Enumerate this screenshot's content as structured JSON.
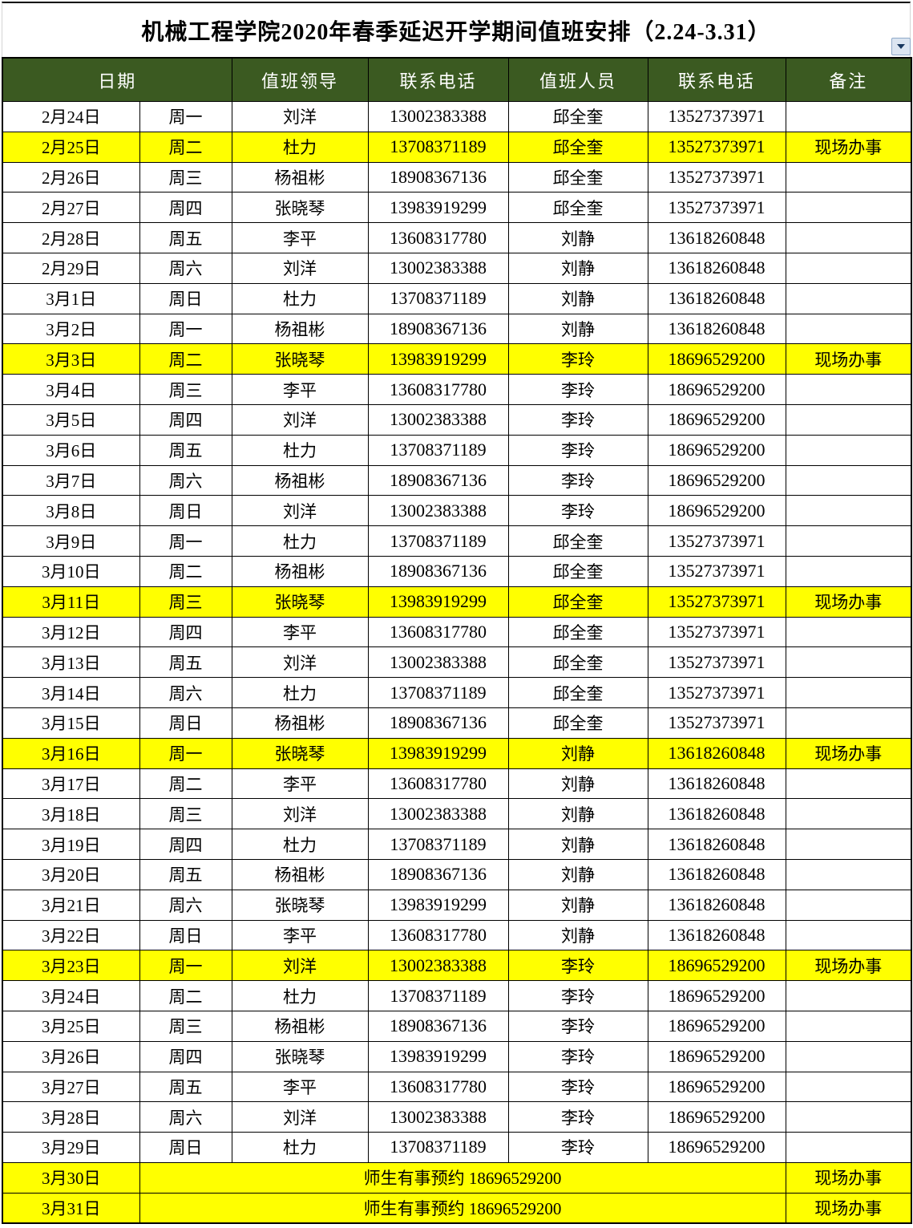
{
  "title": "机械工程学院2020年春季延迟开学期间值班安排（2.24-3.31）",
  "header": {
    "columns": [
      "日期",
      "值班领导",
      "联系电话",
      "值班人员",
      "联系电话",
      "备注"
    ]
  },
  "dropdown": {
    "icon": "down-triangle"
  },
  "colors": {
    "header_bg": "#3b5a21",
    "header_text": "#ffffff",
    "highlight": "#ffff00",
    "border": "#000000"
  },
  "rows": [
    {
      "date": "2月24日",
      "weekday": "周一",
      "leader": "刘洋",
      "leader_phone": "13002383388",
      "staff": "邱全奎",
      "staff_phone": "13527373971",
      "remark": "",
      "highlight": false
    },
    {
      "date": "2月25日",
      "weekday": "周二",
      "leader": "杜力",
      "leader_phone": "13708371189",
      "staff": "邱全奎",
      "staff_phone": "13527373971",
      "remark": "现场办事",
      "highlight": true
    },
    {
      "date": "2月26日",
      "weekday": "周三",
      "leader": "杨祖彬",
      "leader_phone": "18908367136",
      "staff": "邱全奎",
      "staff_phone": "13527373971",
      "remark": "",
      "highlight": false
    },
    {
      "date": "2月27日",
      "weekday": "周四",
      "leader": "张晓琴",
      "leader_phone": "13983919299",
      "staff": "邱全奎",
      "staff_phone": "13527373971",
      "remark": "",
      "highlight": false
    },
    {
      "date": "2月28日",
      "weekday": "周五",
      "leader": "李平",
      "leader_phone": "13608317780",
      "staff": "刘静",
      "staff_phone": "13618260848",
      "remark": "",
      "highlight": false
    },
    {
      "date": "2月29日",
      "weekday": "周六",
      "leader": "刘洋",
      "leader_phone": "13002383388",
      "staff": "刘静",
      "staff_phone": "13618260848",
      "remark": "",
      "highlight": false
    },
    {
      "date": "3月1日",
      "weekday": "周日",
      "leader": "杜力",
      "leader_phone": "13708371189",
      "staff": "刘静",
      "staff_phone": "13618260848",
      "remark": "",
      "highlight": false
    },
    {
      "date": "3月2日",
      "weekday": "周一",
      "leader": "杨祖彬",
      "leader_phone": "18908367136",
      "staff": "刘静",
      "staff_phone": "13618260848",
      "remark": "",
      "highlight": false
    },
    {
      "date": "3月3日",
      "weekday": "周二",
      "leader": "张晓琴",
      "leader_phone": "13983919299",
      "staff": "李玲",
      "staff_phone": "18696529200",
      "remark": "现场办事",
      "highlight": true
    },
    {
      "date": "3月4日",
      "weekday": "周三",
      "leader": "李平",
      "leader_phone": "13608317780",
      "staff": "李玲",
      "staff_phone": "18696529200",
      "remark": "",
      "highlight": false
    },
    {
      "date": "3月5日",
      "weekday": "周四",
      "leader": "刘洋",
      "leader_phone": "13002383388",
      "staff": "李玲",
      "staff_phone": "18696529200",
      "remark": "",
      "highlight": false
    },
    {
      "date": "3月6日",
      "weekday": "周五",
      "leader": "杜力",
      "leader_phone": "13708371189",
      "staff": "李玲",
      "staff_phone": "18696529200",
      "remark": "",
      "highlight": false
    },
    {
      "date": "3月7日",
      "weekday": "周六",
      "leader": "杨祖彬",
      "leader_phone": "18908367136",
      "staff": "李玲",
      "staff_phone": "18696529200",
      "remark": "",
      "highlight": false
    },
    {
      "date": "3月8日",
      "weekday": "周日",
      "leader": "刘洋",
      "leader_phone": "13002383388",
      "staff": "李玲",
      "staff_phone": "18696529200",
      "remark": "",
      "highlight": false
    },
    {
      "date": "3月9日",
      "weekday": "周一",
      "leader": "杜力",
      "leader_phone": "13708371189",
      "staff": "邱全奎",
      "staff_phone": "13527373971",
      "remark": "",
      "highlight": false
    },
    {
      "date": "3月10日",
      "weekday": "周二",
      "leader": "杨祖彬",
      "leader_phone": "18908367136",
      "staff": "邱全奎",
      "staff_phone": "13527373971",
      "remark": "",
      "highlight": false
    },
    {
      "date": "3月11日",
      "weekday": "周三",
      "leader": "张晓琴",
      "leader_phone": "13983919299",
      "staff": "邱全奎",
      "staff_phone": "13527373971",
      "remark": "现场办事",
      "highlight": true
    },
    {
      "date": "3月12日",
      "weekday": "周四",
      "leader": "李平",
      "leader_phone": "13608317780",
      "staff": "邱全奎",
      "staff_phone": "13527373971",
      "remark": "",
      "highlight": false
    },
    {
      "date": "3月13日",
      "weekday": "周五",
      "leader": "刘洋",
      "leader_phone": "13002383388",
      "staff": "邱全奎",
      "staff_phone": "13527373971",
      "remark": "",
      "highlight": false
    },
    {
      "date": "3月14日",
      "weekday": "周六",
      "leader": "杜力",
      "leader_phone": "13708371189",
      "staff": "邱全奎",
      "staff_phone": "13527373971",
      "remark": "",
      "highlight": false
    },
    {
      "date": "3月15日",
      "weekday": "周日",
      "leader": "杨祖彬",
      "leader_phone": "18908367136",
      "staff": "邱全奎",
      "staff_phone": "13527373971",
      "remark": "",
      "highlight": false
    },
    {
      "date": "3月16日",
      "weekday": "周一",
      "leader": "张晓琴",
      "leader_phone": "13983919299",
      "staff": "刘静",
      "staff_phone": "13618260848",
      "remark": "现场办事",
      "highlight": true
    },
    {
      "date": "3月17日",
      "weekday": "周二",
      "leader": "李平",
      "leader_phone": "13608317780",
      "staff": "刘静",
      "staff_phone": "13618260848",
      "remark": "",
      "highlight": false
    },
    {
      "date": "3月18日",
      "weekday": "周三",
      "leader": "刘洋",
      "leader_phone": "13002383388",
      "staff": "刘静",
      "staff_phone": "13618260848",
      "remark": "",
      "highlight": false
    },
    {
      "date": "3月19日",
      "weekday": "周四",
      "leader": "杜力",
      "leader_phone": "13708371189",
      "staff": "刘静",
      "staff_phone": "13618260848",
      "remark": "",
      "highlight": false
    },
    {
      "date": "3月20日",
      "weekday": "周五",
      "leader": "杨祖彬",
      "leader_phone": "18908367136",
      "staff": "刘静",
      "staff_phone": "13618260848",
      "remark": "",
      "highlight": false
    },
    {
      "date": "3月21日",
      "weekday": "周六",
      "leader": "张晓琴",
      "leader_phone": "13983919299",
      "staff": "刘静",
      "staff_phone": "13618260848",
      "remark": "",
      "highlight": false
    },
    {
      "date": "3月22日",
      "weekday": "周日",
      "leader": "李平",
      "leader_phone": "13608317780",
      "staff": "刘静",
      "staff_phone": "13618260848",
      "remark": "",
      "highlight": false
    },
    {
      "date": "3月23日",
      "weekday": "周一",
      "leader": "刘洋",
      "leader_phone": "13002383388",
      "staff": "李玲",
      "staff_phone": "18696529200",
      "remark": "现场办事",
      "highlight": true
    },
    {
      "date": "3月24日",
      "weekday": "周二",
      "leader": "杜力",
      "leader_phone": "13708371189",
      "staff": "李玲",
      "staff_phone": "18696529200",
      "remark": "",
      "highlight": false
    },
    {
      "date": "3月25日",
      "weekday": "周三",
      "leader": "杨祖彬",
      "leader_phone": "18908367136",
      "staff": "李玲",
      "staff_phone": "18696529200",
      "remark": "",
      "highlight": false
    },
    {
      "date": "3月26日",
      "weekday": "周四",
      "leader": "张晓琴",
      "leader_phone": "13983919299",
      "staff": "李玲",
      "staff_phone": "18696529200",
      "remark": "",
      "highlight": false
    },
    {
      "date": "3月27日",
      "weekday": "周五",
      "leader": "李平",
      "leader_phone": "13608317780",
      "staff": "李玲",
      "staff_phone": "18696529200",
      "remark": "",
      "highlight": false
    },
    {
      "date": "3月28日",
      "weekday": "周六",
      "leader": "刘洋",
      "leader_phone": "13002383388",
      "staff": "李玲",
      "staff_phone": "18696529200",
      "remark": "",
      "highlight": false
    },
    {
      "date": "3月29日",
      "weekday": "周日",
      "leader": "杜力",
      "leader_phone": "13708371189",
      "staff": "李玲",
      "staff_phone": "18696529200",
      "remark": "",
      "highlight": false
    }
  ],
  "footer_rows": [
    {
      "date": "3月30日",
      "notice": "师生有事预约 18696529200",
      "remark": "现场办事",
      "highlight": true
    },
    {
      "date": "3月31日",
      "notice": "师生有事预约 18696529200",
      "remark": "现场办事",
      "highlight": true
    }
  ]
}
